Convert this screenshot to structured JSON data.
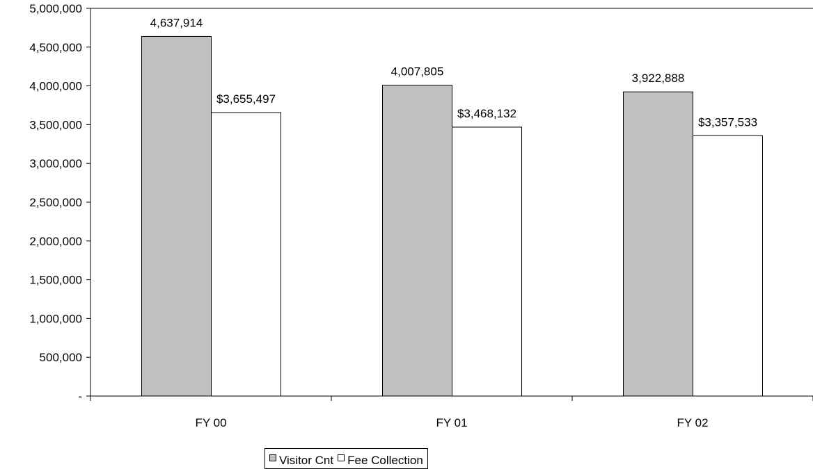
{
  "chart_data": {
    "type": "bar",
    "categories": [
      "FY 00",
      "FY 01",
      "FY 02"
    ],
    "series": [
      {
        "name": "Visitor Cnt",
        "values": [
          4637914,
          4007805,
          3922888
        ],
        "labels": [
          "4,637,914",
          "4,007,805",
          "3,922,888"
        ],
        "color": "#c0c0c0"
      },
      {
        "name": "Fee Collection",
        "values": [
          3655497,
          3468132,
          3357533
        ],
        "labels": [
          "$3,655,497",
          "$3,468,132",
          "$3,357,533"
        ],
        "color": "#ffffff"
      }
    ],
    "ylim": [
      0,
      5000000
    ],
    "yticks": [
      0,
      500000,
      1000000,
      1500000,
      2000000,
      2500000,
      3000000,
      3500000,
      4000000,
      4500000,
      5000000
    ],
    "ytick_labels": [
      "-",
      "500,000",
      "1,000,000",
      "1,500,000",
      "2,000,000",
      "2,500,000",
      "3,000,000",
      "3,500,000",
      "4,000,000",
      "4,500,000",
      "5,000,000"
    ],
    "grid": false,
    "legend": "bottom-center"
  }
}
